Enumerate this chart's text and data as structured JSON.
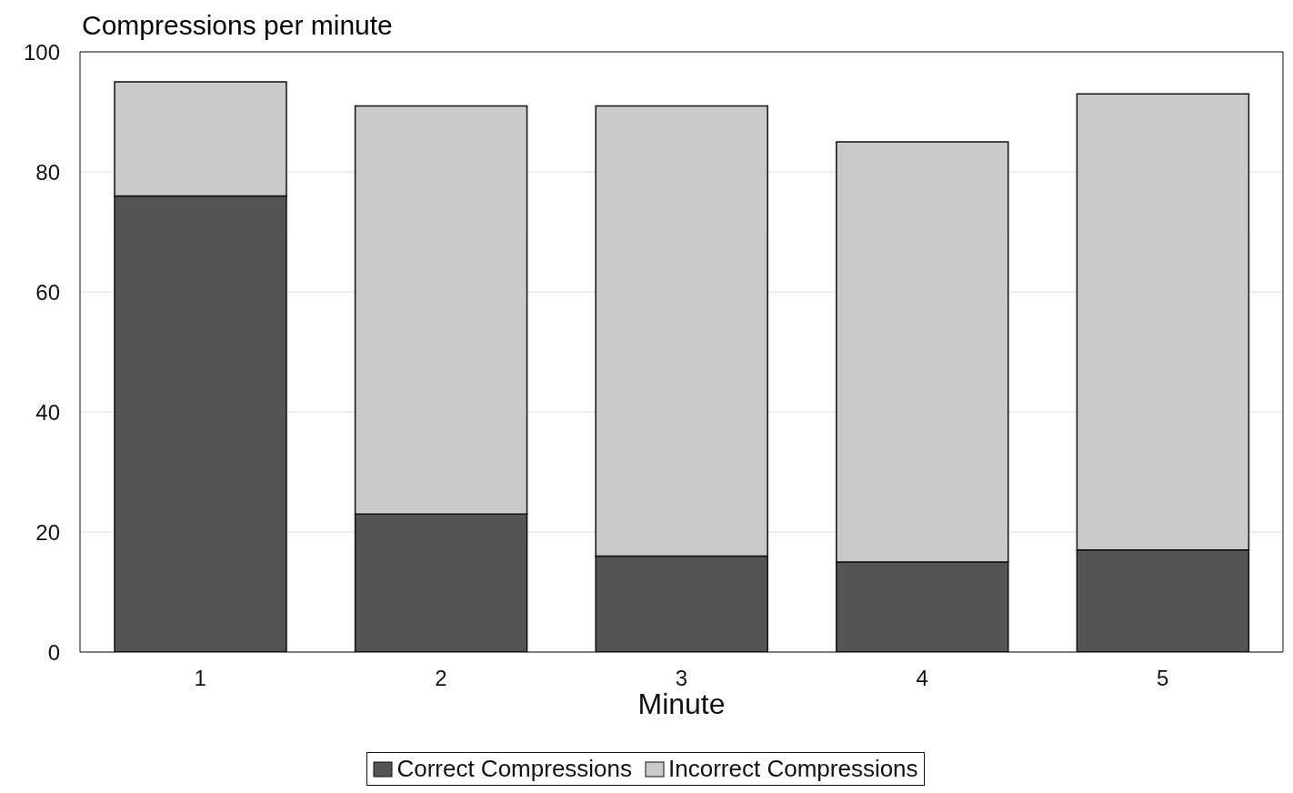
{
  "chart_data": {
    "type": "bar",
    "title": "Compressions per minute",
    "xlabel": "Minute",
    "categories": [
      "1",
      "2",
      "3",
      "4",
      "5"
    ],
    "series": [
      {
        "name": "Correct Compressions",
        "color": "#555555",
        "values": [
          76,
          23,
          16,
          15,
          17
        ]
      },
      {
        "name": "Incorrect Compressions",
        "color": "#c9c9c9",
        "values": [
          19,
          68,
          75,
          70,
          76
        ]
      }
    ],
    "stacked": true,
    "ylim": [
      0,
      100
    ],
    "yticks": [
      0,
      20,
      40,
      60,
      80,
      100
    ],
    "grid": "y",
    "legend": "bottom"
  }
}
